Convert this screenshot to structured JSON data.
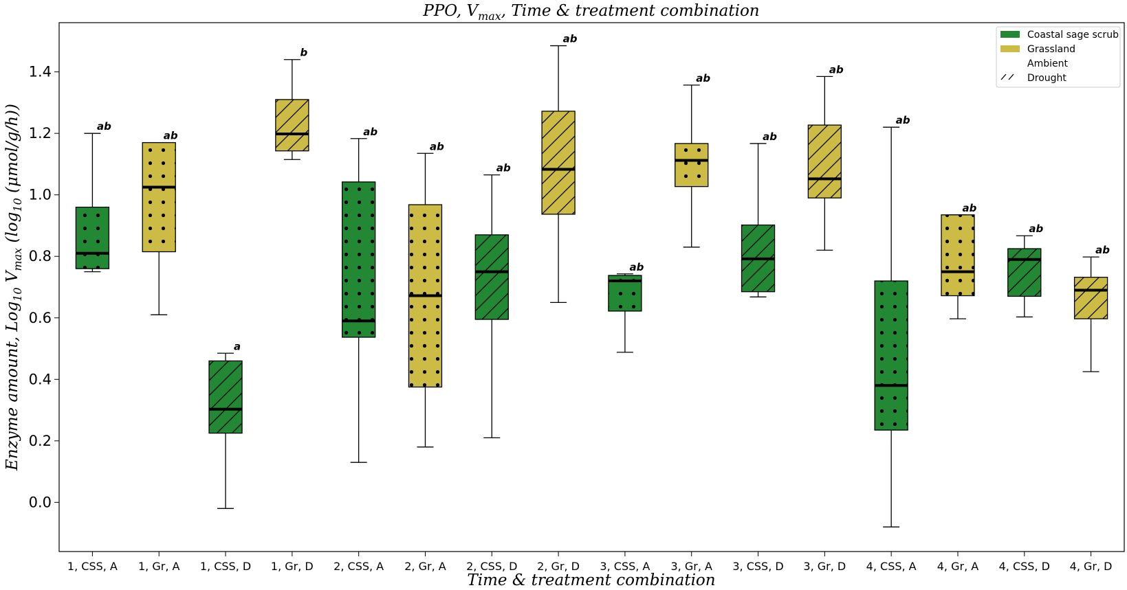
{
  "chart_data": {
    "type": "box",
    "title": "PPO, V",
    "title_sub": "max",
    "title_rest": ", Time & treatment combination",
    "xlabel": "Time & treatment combination",
    "ylabel_parts": {
      "a": "Enzyme amount, Log",
      "a_sub": "10",
      "b": " V",
      "b_sub": "max",
      "c": " (log",
      "c_sub": "10",
      "d": " (μmol/g/h))"
    },
    "ylim": [
      -0.16,
      1.56
    ],
    "yticks": [
      0.0,
      0.2,
      0.4,
      0.6,
      0.8,
      1.0,
      1.2,
      1.4
    ],
    "ytick_labels": [
      "0.0",
      "0.2",
      "0.4",
      "0.6",
      "0.8",
      "1.0",
      "1.2",
      "1.4"
    ],
    "categories": [
      "1, CSS, A",
      "1, Gr, A",
      "1, CSS, D",
      "1, Gr, D",
      "2, CSS, A",
      "2, Gr, A",
      "2, CSS, D",
      "2, Gr, D",
      "3, CSS, A",
      "3, Gr, A",
      "3, CSS, D",
      "3, Gr, D",
      "4, CSS, A",
      "4, Gr, A",
      "4, CSS, D",
      "4, Gr, D"
    ],
    "boxes": [
      {
        "whislo": 0.75,
        "q1": 0.76,
        "med": 0.81,
        "q3": 0.96,
        "whishi": 1.2,
        "vegetation": "css",
        "treatment": "ambient",
        "label": "ab"
      },
      {
        "whislo": 0.61,
        "q1": 0.815,
        "med": 1.025,
        "q3": 1.17,
        "whishi": 1.17,
        "vegetation": "gr",
        "treatment": "ambient",
        "label": "ab"
      },
      {
        "whislo": -0.02,
        "q1": 0.225,
        "med": 0.303,
        "q3": 0.46,
        "whishi": 0.485,
        "vegetation": "css",
        "treatment": "drought",
        "label": "a"
      },
      {
        "whislo": 1.115,
        "q1": 1.143,
        "med": 1.198,
        "q3": 1.31,
        "whishi": 1.44,
        "vegetation": "gr",
        "treatment": "drought",
        "label": "b"
      },
      {
        "whislo": 0.13,
        "q1": 0.537,
        "med": 0.59,
        "q3": 1.042,
        "whishi": 1.183,
        "vegetation": "css",
        "treatment": "ambient",
        "label": "ab"
      },
      {
        "whislo": 0.18,
        "q1": 0.375,
        "med": 0.672,
        "q3": 0.968,
        "whishi": 1.135,
        "vegetation": "gr",
        "treatment": "ambient",
        "label": "ab"
      },
      {
        "whislo": 0.21,
        "q1": 0.595,
        "med": 0.75,
        "q3": 0.87,
        "whishi": 1.065,
        "vegetation": "css",
        "treatment": "drought",
        "label": "ab"
      },
      {
        "whislo": 0.65,
        "q1": 0.937,
        "med": 1.083,
        "q3": 1.272,
        "whishi": 1.485,
        "vegetation": "gr",
        "treatment": "drought",
        "label": "ab"
      },
      {
        "whislo": 0.488,
        "q1": 0.622,
        "med": 0.72,
        "q3": 0.738,
        "whishi": 0.743,
        "vegetation": "css",
        "treatment": "ambient",
        "label": "ab"
      },
      {
        "whislo": 0.83,
        "q1": 1.027,
        "med": 1.112,
        "q3": 1.167,
        "whishi": 1.357,
        "vegetation": "gr",
        "treatment": "ambient",
        "label": "ab"
      },
      {
        "whislo": 0.668,
        "q1": 0.685,
        "med": 0.792,
        "q3": 0.902,
        "whishi": 1.167,
        "vegetation": "css",
        "treatment": "drought",
        "label": "ab"
      },
      {
        "whislo": 0.82,
        "q1": 0.99,
        "med": 1.052,
        "q3": 1.227,
        "whishi": 1.385,
        "vegetation": "gr",
        "treatment": "drought",
        "label": "ab"
      },
      {
        "whislo": -0.08,
        "q1": 0.235,
        "med": 0.38,
        "q3": 0.72,
        "whishi": 1.22,
        "vegetation": "css",
        "treatment": "ambient",
        "label": "ab"
      },
      {
        "whislo": 0.597,
        "q1": 0.672,
        "med": 0.75,
        "q3": 0.935,
        "whishi": 0.935,
        "vegetation": "gr",
        "treatment": "ambient",
        "label": "ab"
      },
      {
        "whislo": 0.603,
        "q1": 0.67,
        "med": 0.79,
        "q3": 0.825,
        "whishi": 0.867,
        "vegetation": "css",
        "treatment": "drought",
        "label": "ab"
      },
      {
        "whislo": 0.425,
        "q1": 0.597,
        "med": 0.69,
        "q3": 0.732,
        "whishi": 0.798,
        "vegetation": "gr",
        "treatment": "drought",
        "label": "ab"
      }
    ],
    "colors": {
      "css": "#228833",
      "gr": "#ccbb44"
    },
    "legend": {
      "placement": "top-right",
      "entries": [
        {
          "label": "Coastal sage scrub",
          "kind": "css"
        },
        {
          "label": "Grassland",
          "kind": "gr"
        },
        {
          "label": "Ambient",
          "kind": "ambient"
        },
        {
          "label": "Drought",
          "kind": "drought"
        }
      ]
    },
    "grid": false
  }
}
